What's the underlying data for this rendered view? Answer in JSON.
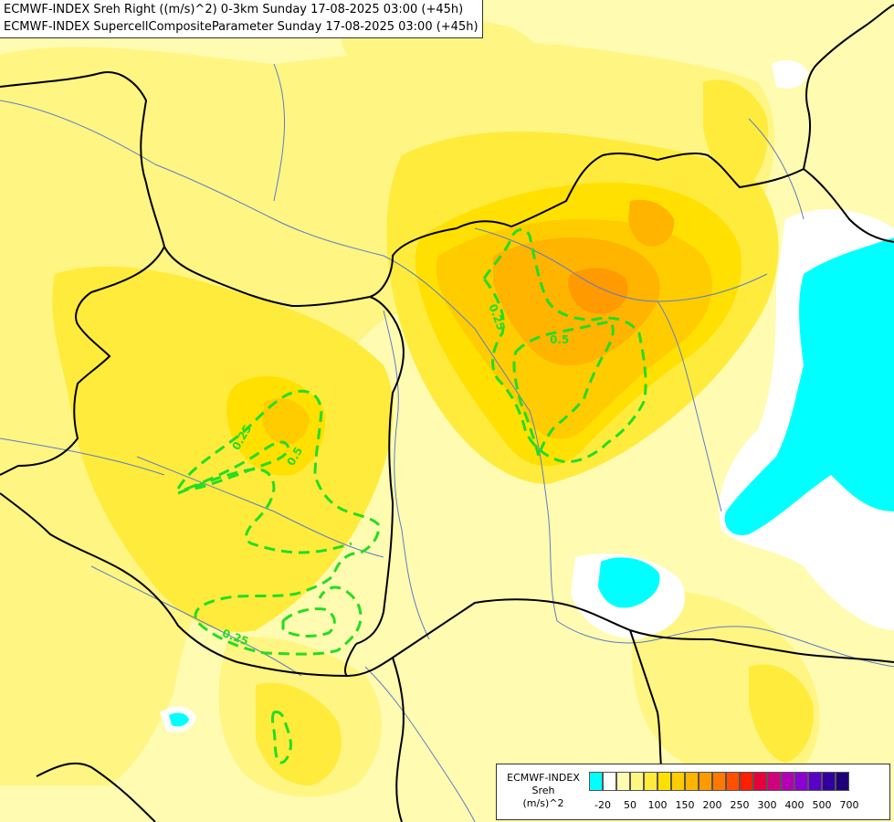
{
  "title": {
    "line1": "ECMWF-INDEX Sreh Right ((m/s)^2) 0-3km Sunday 17-08-2025 03:00 (+45h)",
    "line2": "ECMWF-INDEX SupercellCompositeParameter Sunday 17-08-2025 03:00 (+45h)"
  },
  "contour_labels": [
    "0.25",
    "0.5",
    "0.25",
    "0.5",
    "0.25"
  ],
  "legend": {
    "line1": "ECMWF-INDEX",
    "line2": "Sreh",
    "line3": "(m/s)^2",
    "colors": [
      "#00ffff",
      "#ffffff",
      "#fffbb0",
      "#fff582",
      "#ffeb3c",
      "#ffe000",
      "#ffcc00",
      "#ffb400",
      "#ff9a00",
      "#ff7800",
      "#ff5000",
      "#ff1e00",
      "#e6003c",
      "#d2007a",
      "#b400b4",
      "#8c00d2",
      "#5a00c8",
      "#3200a0",
      "#1e0078"
    ],
    "ticks": [
      "-20",
      "50",
      "100",
      "150",
      "200",
      "250",
      "300",
      "400",
      "500",
      "700"
    ]
  },
  "colors": {
    "cyan": "#00ffff",
    "contour_green": "#22dd22",
    "border": "#000000",
    "river": "#5a7dc8"
  }
}
